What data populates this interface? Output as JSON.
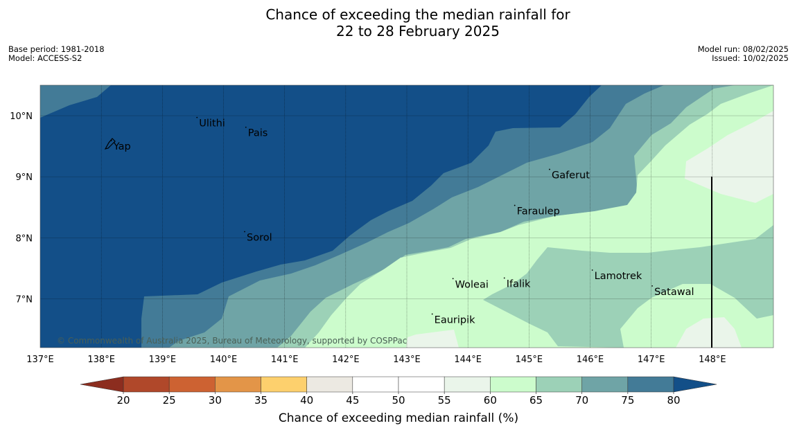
{
  "title": {
    "line1": "Chance of exceeding the median rainfall for",
    "line2": "22 to 28 February 2025"
  },
  "meta_left": {
    "base_period": "Base period: 1981-2018",
    "model": "Model: ACCESS-S2"
  },
  "meta_right": {
    "model_run": "Model run: 08/02/2025",
    "issued": "Issued: 10/02/2025"
  },
  "copyright": "© Commonwealth of Australia 2025, Bureau of Meteorology, supported by COSPPac",
  "map": {
    "lon_range": [
      137,
      149
    ],
    "lat_range": [
      6.2,
      10.5
    ],
    "lon_ticks": [
      {
        "value": 137,
        "label": "137°E"
      },
      {
        "value": 138,
        "label": "138°E"
      },
      {
        "value": 139,
        "label": "139°E"
      },
      {
        "value": 140,
        "label": "140°E"
      },
      {
        "value": 141,
        "label": "141°E"
      },
      {
        "value": 142,
        "label": "142°E"
      },
      {
        "value": 143,
        "label": "143°E"
      },
      {
        "value": 144,
        "label": "144°E"
      },
      {
        "value": 145,
        "label": "145°E"
      },
      {
        "value": 146,
        "label": "146°E"
      },
      {
        "value": 147,
        "label": "147°E"
      },
      {
        "value": 148,
        "label": "148°E"
      }
    ],
    "lat_ticks": [
      {
        "value": 10,
        "label": "10°N"
      },
      {
        "value": 9,
        "label": "9°N"
      },
      {
        "value": 8,
        "label": "8°N"
      },
      {
        "value": 7,
        "label": "7°N"
      }
    ],
    "places": [
      {
        "name": "Yap",
        "lon": 138.2,
        "lat": 9.5
      },
      {
        "name": "Ulithi",
        "lon": 139.6,
        "lat": 9.88
      },
      {
        "name": "Pais",
        "lon": 140.4,
        "lat": 9.72
      },
      {
        "name": "Gaferut",
        "lon": 145.37,
        "lat": 9.03
      },
      {
        "name": "Faraulep",
        "lon": 144.8,
        "lat": 8.44
      },
      {
        "name": "Sorol",
        "lon": 140.38,
        "lat": 8.01
      },
      {
        "name": "Woleai",
        "lon": 143.79,
        "lat": 7.24
      },
      {
        "name": "Ifalik",
        "lon": 144.63,
        "lat": 7.25
      },
      {
        "name": "Lamotrek",
        "lon": 146.07,
        "lat": 7.38
      },
      {
        "name": "Satawal",
        "lon": 147.05,
        "lat": 7.12
      },
      {
        "name": "Eauripik",
        "lon": 143.45,
        "lat": 6.66
      }
    ]
  },
  "colorbar": {
    "label": "Chance of exceeding median rainfall (%)",
    "tick_labels": [
      "20",
      "25",
      "30",
      "35",
      "40",
      "45",
      "50",
      "55",
      "60",
      "65",
      "70",
      "75",
      "80"
    ],
    "colors": {
      "below_20": "#8c2d1f",
      "20-25": "#b0482a",
      "25-30": "#cd6232",
      "30-35": "#e39548",
      "35-40": "#fdd06d",
      "40-45": "#ece9e2",
      "45-50": "#ffffff",
      "50-55": "#ffffff",
      "55-60": "#eaf5ea",
      "60-65": "#ccfccc",
      "65-70": "#9cd1b7",
      "70-75": "#6fa4a6",
      "75-80": "#437b97",
      "above_80": "#134f88"
    }
  }
}
